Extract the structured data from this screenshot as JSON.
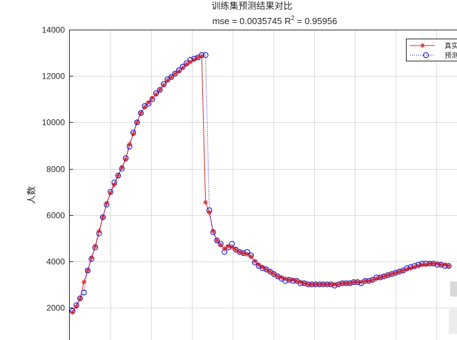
{
  "chart_data": {
    "type": "line",
    "title": "训练集预测结果对比",
    "subtitle": {
      "prefix": "mse = 0.0035745 R",
      "sup": "2",
      "suffix": " = 0.95956"
    },
    "xlabel": "",
    "ylabel": "人数",
    "ylim": [
      1000,
      14000
    ],
    "yticks": [
      2000,
      4000,
      6000,
      8000,
      10000,
      12000,
      14000
    ],
    "ytick_labels": [
      "2000",
      "4000",
      "6000",
      "8000",
      "10000",
      "12000",
      "14000"
    ],
    "x_range": [
      0,
      100
    ],
    "grid": true,
    "legend_position": "top-right",
    "series": [
      {
        "name": "真实值",
        "color": "#d62728",
        "line": "solid",
        "marker": "asterisk",
        "values": [
          1800,
          2050,
          2380,
          3100,
          3600,
          4150,
          4650,
          5300,
          5900,
          6500,
          6950,
          7300,
          7700,
          8050,
          8400,
          9050,
          9500,
          10000,
          10400,
          10650,
          10850,
          11050,
          11200,
          11400,
          11600,
          11800,
          11950,
          12100,
          12200,
          12350,
          12500,
          12600,
          12700,
          12800,
          12850,
          6550,
          6100,
          5300,
          4900,
          4700,
          4550,
          4650,
          4600,
          4500,
          4400,
          4350,
          4300,
          4200,
          4000,
          3850,
          3750,
          3650,
          3550,
          3450,
          3350,
          3300,
          3250,
          3200,
          3200,
          3150,
          3100,
          3050,
          3000,
          3000,
          3000,
          3000,
          3000,
          3000,
          3000,
          3000,
          3000,
          3050,
          3050,
          3050,
          3100,
          3100,
          3100,
          3150,
          3150,
          3200,
          3250,
          3300,
          3350,
          3400,
          3450,
          3500,
          3550,
          3600,
          3650,
          3700,
          3750,
          3800,
          3850,
          3850,
          3900,
          3900,
          3900,
          3850,
          3850,
          3800
        ]
      },
      {
        "name": "预测值",
        "color": "#0000cc",
        "line": "dotted",
        "marker": "circle",
        "values": [
          1850,
          2100,
          2400,
          2650,
          3600,
          4100,
          4600,
          5200,
          5900,
          6450,
          7000,
          7400,
          7700,
          8000,
          8450,
          8950,
          9550,
          10000,
          10400,
          10700,
          10800,
          11000,
          11250,
          11400,
          11650,
          11850,
          11950,
          12100,
          12250,
          12400,
          12550,
          12700,
          12750,
          12800,
          12900,
          12900,
          6200,
          5250,
          4900,
          4750,
          4400,
          4600,
          4750,
          4500,
          4400,
          4350,
          4400,
          4250,
          3950,
          3800,
          3700,
          3650,
          3550,
          3450,
          3350,
          3250,
          3150,
          3200,
          3150,
          3150,
          3050,
          3050,
          3000,
          3000,
          3000,
          3000,
          3000,
          3000,
          3000,
          2950,
          3000,
          3050,
          3050,
          3050,
          3100,
          3100,
          3050,
          3150,
          3150,
          3200,
          3300,
          3300,
          3350,
          3400,
          3450,
          3500,
          3550,
          3600,
          3700,
          3750,
          3800,
          3850,
          3900,
          3900,
          3900,
          3900,
          3850,
          3850,
          3800,
          3800
        ]
      }
    ]
  }
}
